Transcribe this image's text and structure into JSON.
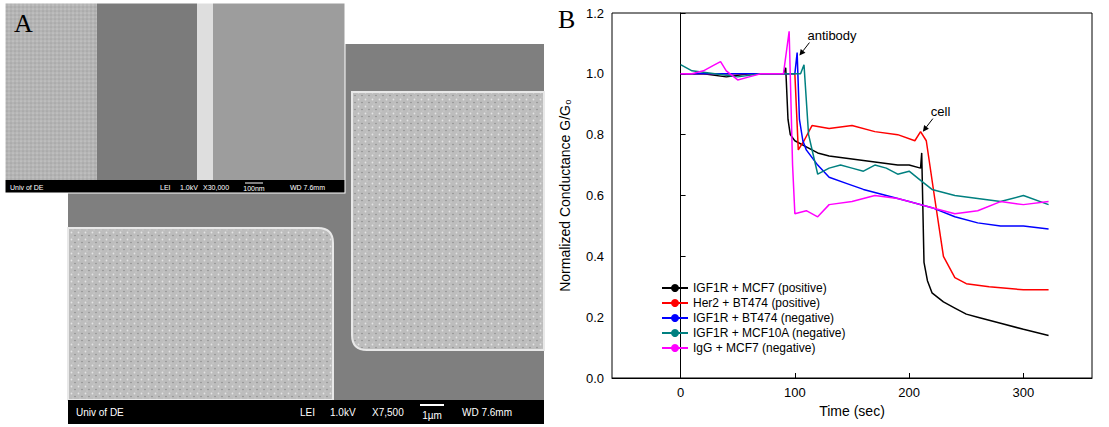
{
  "micrograph": {
    "label": "A",
    "main": {
      "footer": [
        "Univ of DE",
        "LEI",
        "1.0kV",
        "X7,500",
        "1µm",
        "WD 7.6mm"
      ]
    },
    "inset": {
      "footer": [
        "Univ of DE",
        "LEI",
        "1.0kV",
        "X30,000",
        "100nm",
        "WD 7.6mm"
      ]
    }
  },
  "chart_data": {
    "type": "line",
    "panel_label": "B",
    "x_label": "Time (sec)",
    "y_label": "Normalized Conductance G/G₀",
    "xlim": [
      -60,
      360
    ],
    "xticks": [
      0,
      100,
      200,
      300
    ],
    "ylim": [
      0,
      1.2
    ],
    "yticks": [
      {
        "value": 0,
        "label": "0.0"
      },
      0.2,
      0.4,
      0.6,
      0.8,
      {
        "value": 1,
        "label": "1.0"
      },
      1.2
    ],
    "grid": false,
    "legend": "lower left",
    "annotations": [
      {
        "text": "antibody",
        "x": 104,
        "y": 1.06
      },
      {
        "text": "cell",
        "x": 212,
        "y": 0.81
      }
    ],
    "series": [
      {
        "name": "IGF1R + MCF7 (positive)",
        "color": "#000000",
        "x": [
          0,
          20,
          40,
          60,
          80,
          90,
          92,
          94,
          96,
          100,
          110,
          120,
          130,
          150,
          170,
          190,
          200,
          210,
          211,
          213,
          216,
          220,
          230,
          240,
          250,
          260,
          280,
          300,
          322
        ],
        "values": [
          1.0,
          1.0,
          0.99,
          1.0,
          1.0,
          1.0,
          1.02,
          0.85,
          0.8,
          0.78,
          0.76,
          0.74,
          0.73,
          0.72,
          0.71,
          0.7,
          0.7,
          0.69,
          0.74,
          0.38,
          0.32,
          0.28,
          0.25,
          0.23,
          0.21,
          0.2,
          0.18,
          0.16,
          0.14
        ]
      },
      {
        "name": "Her2 + BT474 (positive)",
        "color": "#ff0000",
        "x": [
          0,
          20,
          40,
          60,
          80,
          98,
          100,
          103,
          108,
          115,
          130,
          150,
          170,
          190,
          205,
          210,
          215,
          222,
          230,
          240,
          250,
          270,
          300,
          322
        ],
        "values": [
          1.0,
          1.0,
          1.0,
          1.0,
          1.0,
          1.0,
          1.0,
          0.75,
          0.78,
          0.83,
          0.82,
          0.83,
          0.81,
          0.8,
          0.78,
          0.81,
          0.78,
          0.6,
          0.4,
          0.33,
          0.31,
          0.3,
          0.29,
          0.29
        ]
      },
      {
        "name": "IGF1R + BT474 (negative)",
        "color": "#0000ff",
        "x": [
          0,
          20,
          40,
          60,
          80,
          100,
          102,
          104,
          107,
          110,
          120,
          130,
          145,
          160,
          180,
          200,
          220,
          240,
          260,
          280,
          300,
          322
        ],
        "values": [
          1.0,
          1.0,
          1.0,
          1.0,
          1.0,
          1.0,
          1.07,
          0.85,
          0.78,
          0.75,
          0.7,
          0.66,
          0.64,
          0.62,
          0.6,
          0.58,
          0.56,
          0.53,
          0.51,
          0.5,
          0.5,
          0.49
        ]
      },
      {
        "name": "IGF1R + MCF10A (negative)",
        "color": "#008080",
        "x": [
          0,
          10,
          30,
          50,
          70,
          90,
          105,
          108,
          112,
          120,
          130,
          140,
          150,
          160,
          170,
          180,
          190,
          200,
          210,
          220,
          240,
          260,
          280,
          300,
          322
        ],
        "values": [
          1.03,
          1.01,
          1.0,
          0.99,
          1.0,
          1.0,
          1.0,
          1.03,
          0.8,
          0.67,
          0.69,
          0.7,
          0.69,
          0.68,
          0.7,
          0.69,
          0.67,
          0.68,
          0.65,
          0.62,
          0.6,
          0.59,
          0.58,
          0.6,
          0.57
        ]
      },
      {
        "name": "IgG + MCF7 (negative)",
        "color": "#ff00ff",
        "x": [
          0,
          10,
          20,
          30,
          35,
          40,
          50,
          60,
          70,
          80,
          90,
          95,
          98,
          100,
          110,
          120,
          130,
          150,
          170,
          190,
          210,
          220,
          240,
          260,
          280,
          300,
          322
        ],
        "values": [
          1.0,
          1.0,
          1.01,
          1.03,
          1.04,
          1.01,
          0.98,
          0.99,
          1.0,
          1.0,
          1.0,
          1.14,
          0.7,
          0.54,
          0.55,
          0.53,
          0.57,
          0.58,
          0.6,
          0.59,
          0.57,
          0.56,
          0.54,
          0.55,
          0.58,
          0.57,
          0.58
        ]
      }
    ]
  }
}
